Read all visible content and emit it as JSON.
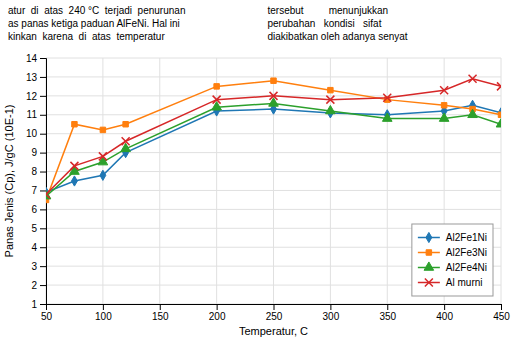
{
  "chart_data": {
    "type": "line",
    "xlabel": "Temperatur, C",
    "ylabel": "Panas Jenis (Cp), J/gC (10E-1)",
    "x": [
      50,
      75,
      100,
      120,
      200,
      250,
      300,
      350,
      400,
      425,
      450
    ],
    "series": [
      {
        "name": "Al2Fe1Ni",
        "values": [
          6.9,
          7.5,
          7.8,
          9.0,
          11.2,
          11.3,
          11.1,
          11.0,
          11.2,
          11.5,
          11.1
        ],
        "marker": "diamond",
        "line_style": "solid"
      },
      {
        "name": "Al2Fe3Ni",
        "values": [
          6.5,
          10.5,
          10.2,
          10.5,
          12.5,
          12.8,
          12.3,
          11.8,
          11.5,
          11.3,
          11.0
        ],
        "marker": "square",
        "line_style": "solid"
      },
      {
        "name": "Al2Fe4Ni",
        "values": [
          6.7,
          8.0,
          8.5,
          9.2,
          11.4,
          11.6,
          11.2,
          10.8,
          10.8,
          11.0,
          10.5
        ],
        "marker": "triangle",
        "line_style": "solid"
      },
      {
        "name": "Al murni",
        "values": [
          6.8,
          8.3,
          8.8,
          9.6,
          11.8,
          12.0,
          11.8,
          11.9,
          12.3,
          12.9,
          12.5
        ],
        "marker": "x",
        "line_style": "solid"
      }
    ],
    "xlim": [
      50,
      450
    ],
    "ylim": [
      1,
      14
    ],
    "xticks": [
      50,
      100,
      150,
      200,
      250,
      300,
      350,
      400,
      450
    ],
    "yticks": [
      1,
      2,
      3,
      4,
      5,
      6,
      7,
      8,
      9,
      10,
      11,
      12,
      13,
      14
    ],
    "grid": true,
    "legend": "lower right",
    "annotations": [
      "atur  di  atas  240 °C  terjadi  penurunan",
      "as panas ketiga paduan AlFeNi. Hal ini",
      "kinkan  karena  di  atas  temperatur",
      "tersebut         menunjukkan",
      "perubahan   kondisi   sifat",
      "diakibatkan oleh adanya senyat"
    ]
  }
}
